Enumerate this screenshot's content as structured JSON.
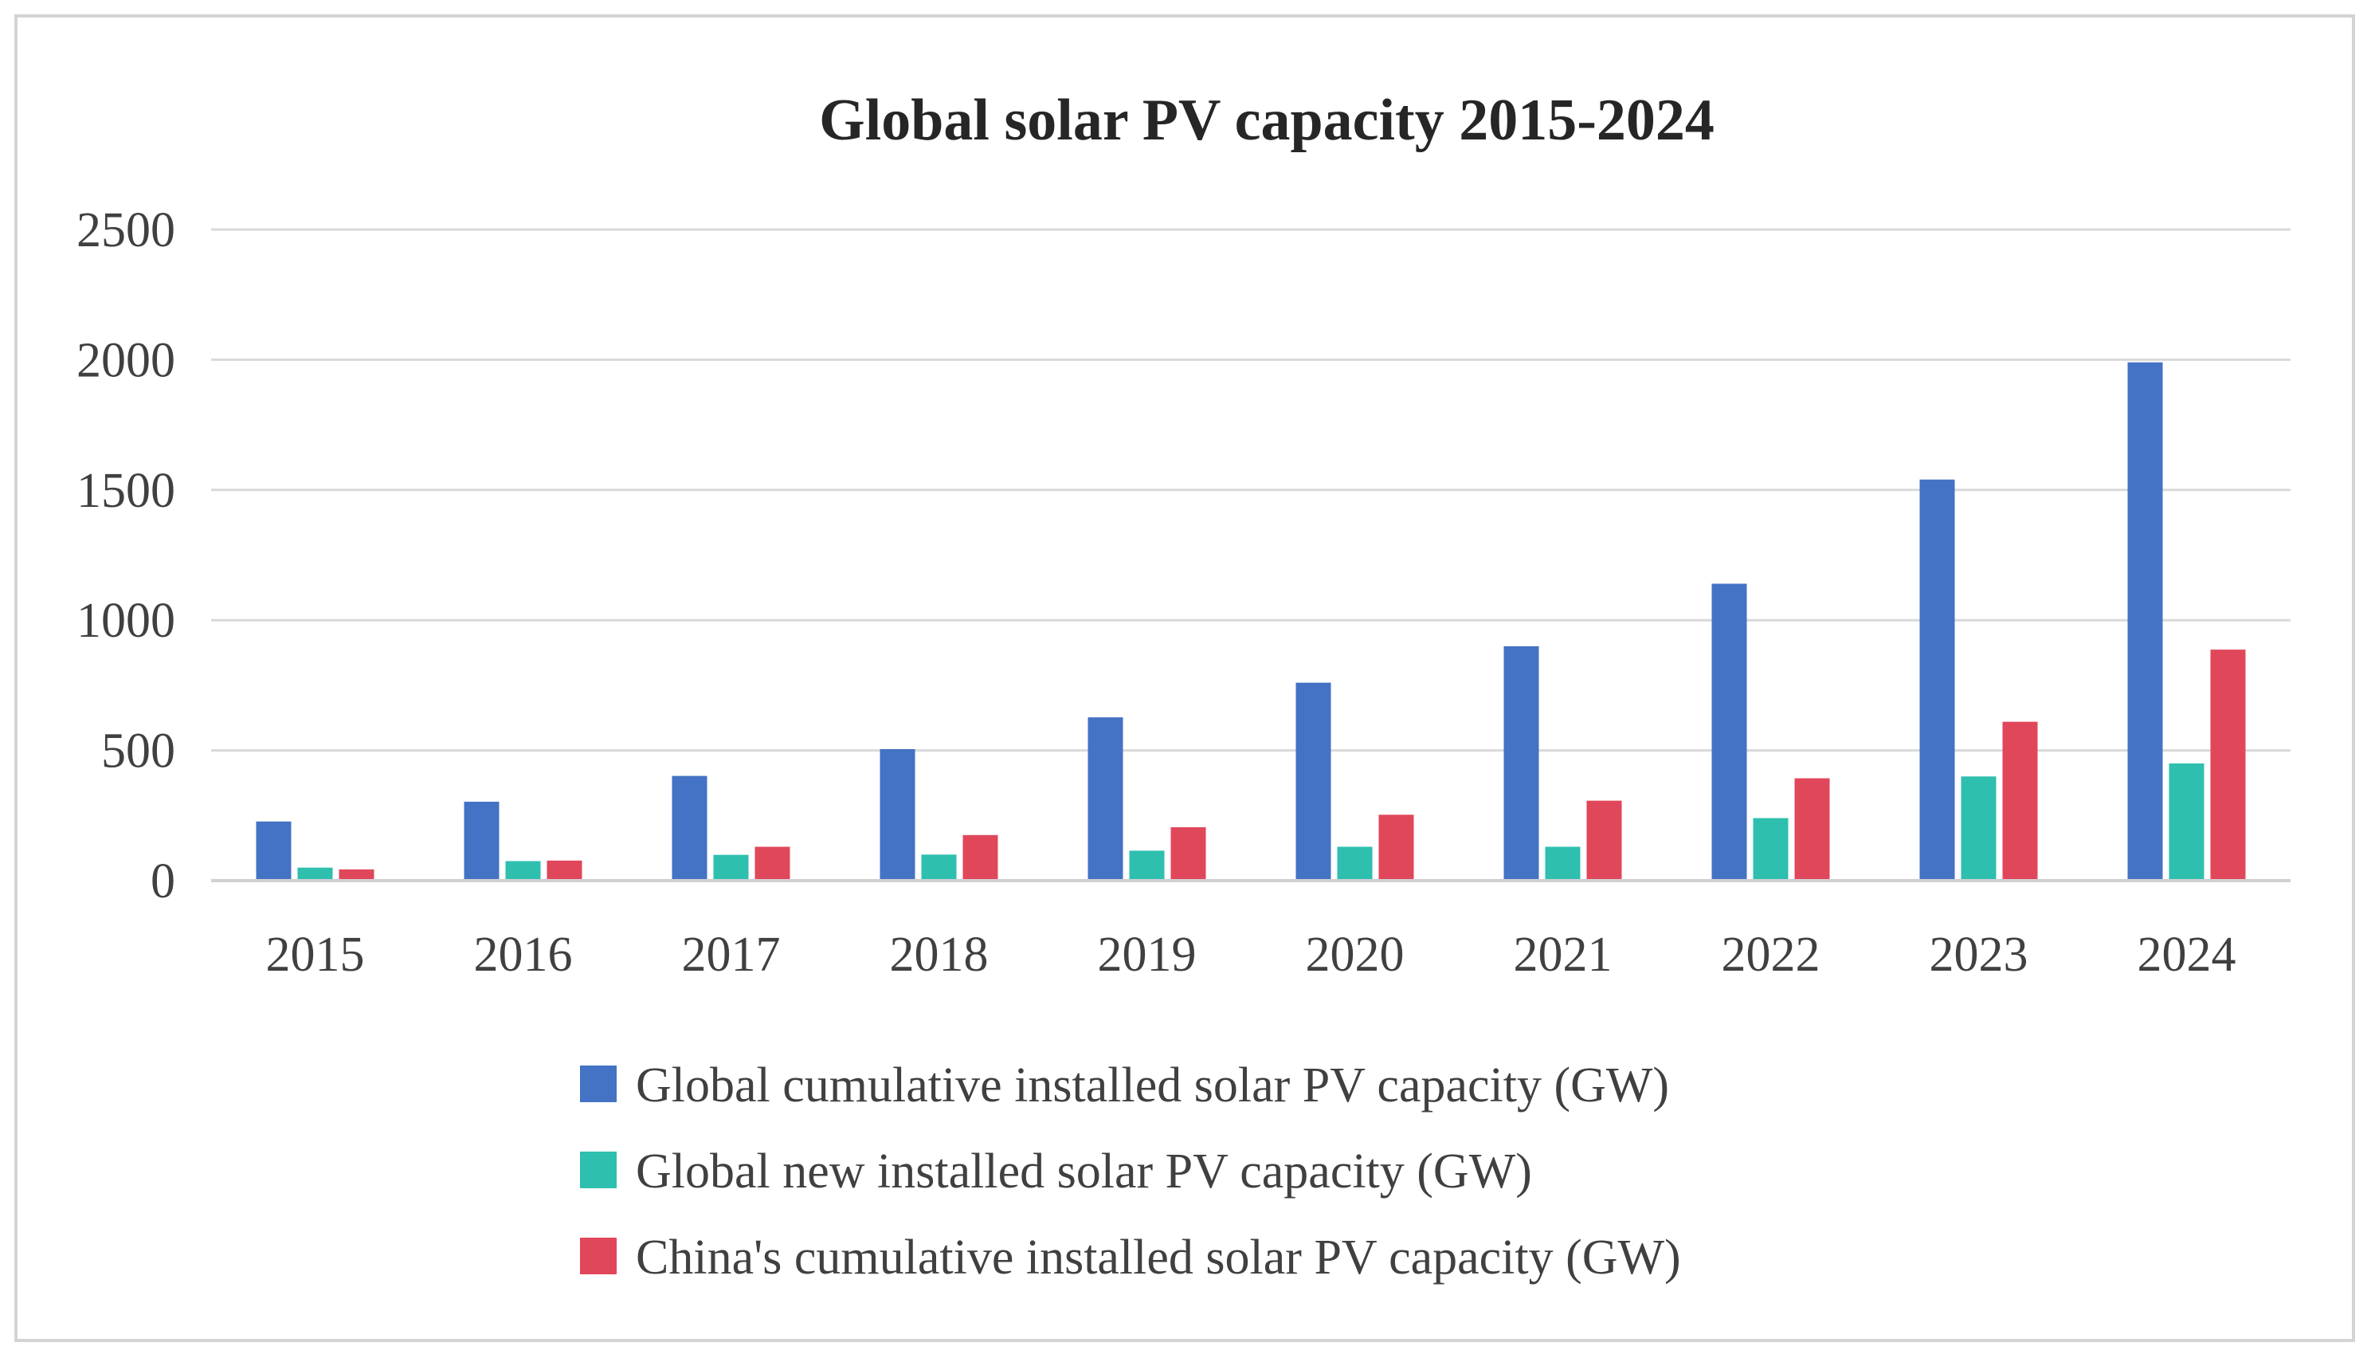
{
  "chart_data": {
    "type": "bar",
    "title": "Global solar PV capacity 2015-2024",
    "xlabel": "",
    "ylabel": "",
    "ylim": [
      0,
      2500
    ],
    "yticks": [
      "0",
      "500",
      "1000",
      "1500",
      "2000",
      "2500"
    ],
    "categories": [
      "2015",
      "2016",
      "2017",
      "2018",
      "2019",
      "2020",
      "2021",
      "2022",
      "2023",
      "2024"
    ],
    "grid": true,
    "legend_position": "bottom",
    "series": [
      {
        "name": "Global cumulative installed solar PV capacity (GW)",
        "color": "#4472C4",
        "values": [
          227,
          303,
          402,
          505,
          627,
          760,
          900,
          1140,
          1540,
          1990
        ]
      },
      {
        "name": "Global new installed solar PV capacity (GW)",
        "color": "#2EBFAE",
        "values": [
          50,
          75,
          99,
          100,
          115,
          130,
          130,
          240,
          400,
          450
        ]
      },
      {
        "name": "China's cumulative installed solar PV capacity (GW)",
        "color": "#E0475B",
        "values": [
          43,
          77,
          130,
          175,
          205,
          253,
          307,
          393,
          610,
          887
        ]
      }
    ]
  }
}
